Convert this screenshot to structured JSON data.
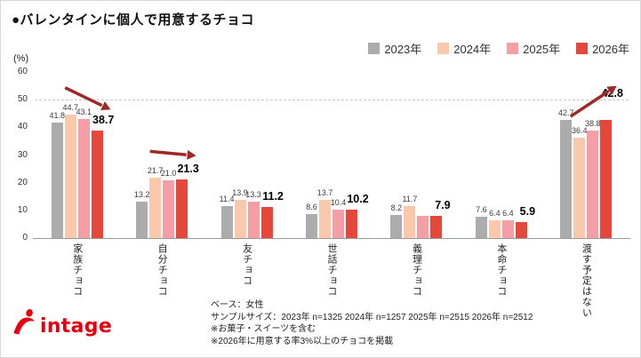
{
  "title": "●バレンタインに個人で用意するチョコ",
  "y_axis_unit": "(%)",
  "chart_data": {
    "type": "bar",
    "title": "バレンタインに個人で用意するチョコ",
    "categories": [
      "家族チョコ",
      "自分チョコ",
      "友チョコ",
      "世話チョコ",
      "義理チョコ",
      "本命チョコ",
      "渡す予定はない"
    ],
    "series": [
      {
        "name": "2023年",
        "color": "#ACACAC",
        "values": [
          41.8,
          13.2,
          11.4,
          8.6,
          8.2,
          7.6,
          42.7
        ]
      },
      {
        "name": "2024年",
        "color": "#FAC9AC",
        "values": [
          44.7,
          21.7,
          13.9,
          13.7,
          11.7,
          6.4,
          36.4
        ]
      },
      {
        "name": "2025年",
        "color": "#F59EA6",
        "values": [
          43.1,
          21.0,
          13.3,
          10.4,
          8.0,
          6.4,
          38.8
        ]
      },
      {
        "name": "2026年",
        "color": "#E5473B",
        "values": [
          38.7,
          21.3,
          11.2,
          10.2,
          7.9,
          5.9,
          42.8
        ],
        "emphasis": true
      }
    ],
    "ylim": [
      0,
      60
    ],
    "yticks": [
      0,
      10,
      20,
      30,
      40,
      50,
      60
    ],
    "dashed_gridline_at": 50,
    "hidden_value_labels": [
      {
        "series_index": 2,
        "category_index": 4
      }
    ],
    "annotations": [
      {
        "category": "家族チョコ",
        "group_index": 0,
        "direction": "down"
      },
      {
        "category": "自分チョコ",
        "group_index": 1,
        "direction": "down"
      },
      {
        "category": "渡す予定はない",
        "group_index": 6,
        "direction": "up"
      }
    ],
    "arrow_color": "#9E2823",
    "legend_position": "top-right",
    "grid": "off"
  },
  "footnotes": [
    "ベース：女性",
    "サンプルサイズ：2023年 n=1325  2024年 n=1257  2025年 n=2515  2026年 n=2512",
    "※お菓子・スイーツを含む",
    "※2026年に用意する率3%以上のチョコを掲載"
  ],
  "logo_text": "intage",
  "brand_color": "#E60012"
}
